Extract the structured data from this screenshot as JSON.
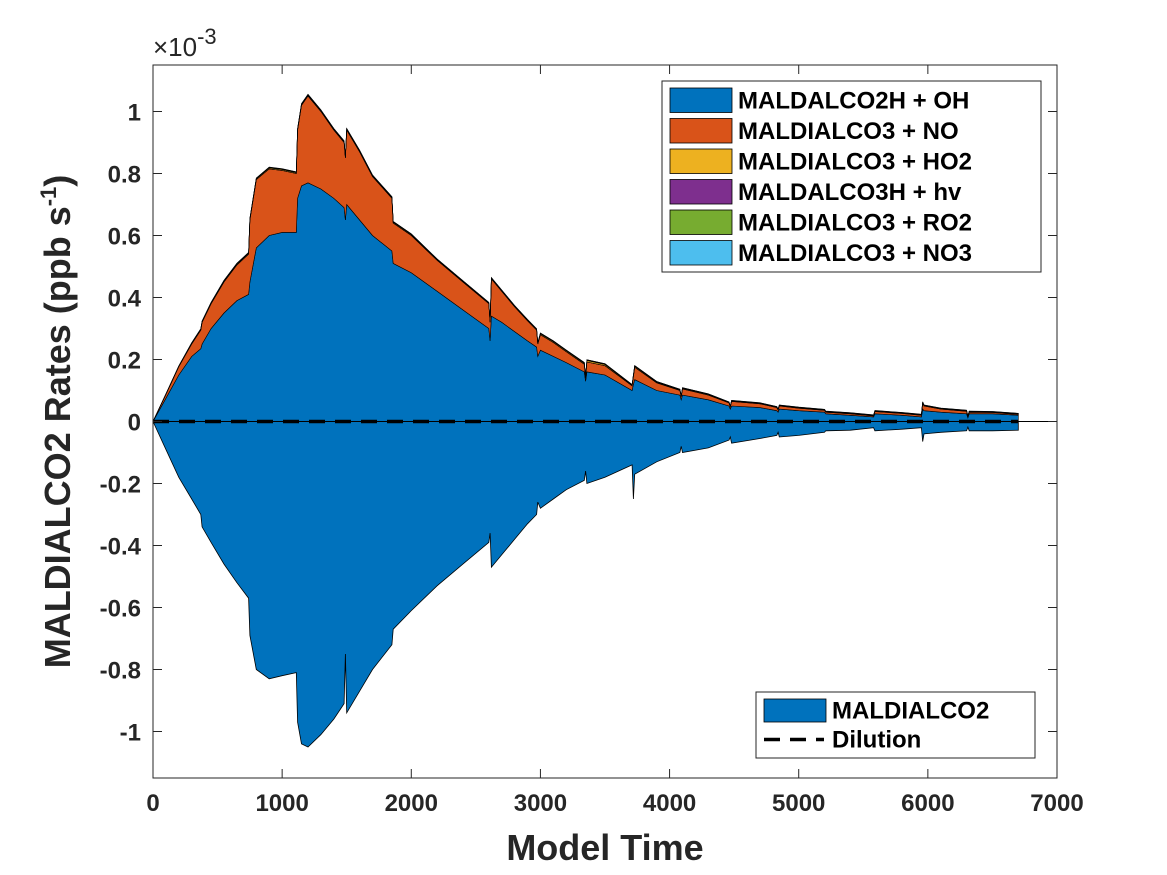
{
  "chart_data": {
    "type": "area",
    "title": "",
    "xlabel": "Model Time",
    "ylabel_main": "MALDIALCO2 Rates (ppb s",
    "ylabel_sup": "-1",
    "ylabel_close": ")",
    "y_multiplier": {
      "base": "×10",
      "exponent": "-3"
    },
    "xlim": [
      0,
      7000
    ],
    "ylim": [
      -1.15,
      1.15
    ],
    "x_ticks": [
      0,
      1000,
      2000,
      3000,
      4000,
      5000,
      6000,
      7000
    ],
    "x_tick_labels": [
      "0",
      "1000",
      "2000",
      "3000",
      "4000",
      "5000",
      "6000",
      "7000"
    ],
    "y_ticks": [
      -1,
      -0.8,
      -0.6,
      -0.4,
      -0.2,
      0,
      0.2,
      0.4,
      0.6,
      0.8,
      1
    ],
    "y_tick_labels": [
      "-1",
      "-0.8",
      "-0.6",
      "-0.4",
      "-0.2",
      "0",
      "0.2",
      "0.4",
      "0.6",
      "0.8",
      "1"
    ],
    "x": [
      0,
      100,
      200,
      300,
      370,
      380,
      450,
      550,
      650,
      740,
      750,
      800,
      900,
      1000,
      1110,
      1120,
      1150,
      1200,
      1300,
      1400,
      1480,
      1490,
      1500,
      1600,
      1700,
      1850,
      1860,
      2000,
      2200,
      2400,
      2600,
      2610,
      2620,
      2700,
      2800,
      2900,
      2970,
      2980,
      3000,
      3100,
      3200,
      3340,
      3350,
      3360,
      3500,
      3710,
      3720,
      3730,
      3900,
      4080,
      4090,
      4100,
      4300,
      4460,
      4470,
      4480,
      4700,
      4830,
      4840,
      4850,
      5000,
      5200,
      5210,
      5400,
      5580,
      5590,
      5800,
      5950,
      5960,
      5970,
      6100,
      6300,
      6310,
      6320,
      6500,
      6700
    ],
    "series": [
      {
        "name": "MALDALCO2H + OH",
        "color": "#0072BD",
        "values": [
          0,
          0.075,
          0.15,
          0.21,
          0.235,
          0.25,
          0.3,
          0.35,
          0.39,
          0.41,
          0.45,
          0.56,
          0.6,
          0.61,
          0.61,
          0.72,
          0.76,
          0.77,
          0.75,
          0.72,
          0.69,
          0.65,
          0.7,
          0.65,
          0.6,
          0.55,
          0.51,
          0.48,
          0.42,
          0.36,
          0.3,
          0.26,
          0.34,
          0.32,
          0.29,
          0.26,
          0.24,
          0.21,
          0.23,
          0.21,
          0.19,
          0.16,
          0.13,
          0.16,
          0.15,
          0.1,
          0.12,
          0.135,
          0.1,
          0.085,
          0.07,
          0.085,
          0.07,
          0.05,
          0.04,
          0.05,
          0.045,
          0.035,
          0.03,
          0.04,
          0.035,
          0.03,
          0.025,
          0.02,
          0.015,
          0.025,
          0.02,
          0.015,
          0.04,
          0.035,
          0.03,
          0.025,
          0.012,
          0.025,
          0.025,
          0.02
        ]
      },
      {
        "name": "MALDIALCO3 + NO",
        "color": "#D95319",
        "values": [
          0,
          0.012,
          0.027,
          0.04,
          0.06,
          0.07,
          0.08,
          0.1,
          0.115,
          0.13,
          0.2,
          0.22,
          0.215,
          0.2,
          0.19,
          0.22,
          0.26,
          0.28,
          0.25,
          0.22,
          0.21,
          0.2,
          0.24,
          0.22,
          0.19,
          0.17,
          0.13,
          0.12,
          0.1,
          0.09,
          0.08,
          0.06,
          0.12,
          0.1,
          0.08,
          0.065,
          0.055,
          0.04,
          0.05,
          0.045,
          0.035,
          0.025,
          0.01,
          0.032,
          0.03,
          0.015,
          0.025,
          0.04,
          0.025,
          0.015,
          0.01,
          0.02,
          0.015,
          0.01,
          0.007,
          0.015,
          0.012,
          0.01,
          0.007,
          0.01,
          0.008,
          0.006,
          0.005,
          0.005,
          0.003,
          0.007,
          0.006,
          0.005,
          0.02,
          0.015,
          0.01,
          0.008,
          0.003,
          0.005,
          0.004,
          0.003
        ]
      },
      {
        "name": "MALDIALCO3 + HO2",
        "color": "#EDB120",
        "values": [
          0,
          0.001,
          0.001,
          0.002,
          0.002,
          0.002,
          0.002,
          0.003,
          0.003,
          0.003,
          0.003,
          0.003,
          0.003,
          0.003,
          0.003,
          0.003,
          0.003,
          0.003,
          0.003,
          0.003,
          0.003,
          0.003,
          0.003,
          0.003,
          0.003,
          0.003,
          0.003,
          0.003,
          0.002,
          0.002,
          0.002,
          0.002,
          0.002,
          0.002,
          0.002,
          0.002,
          0.002,
          0.002,
          0.003,
          0.003,
          0.003,
          0.003,
          0.002,
          0.005,
          0.004,
          0.002,
          0.003,
          0.003,
          0.002,
          0.002,
          0.001,
          0.002,
          0.002,
          0.001,
          0.001,
          0.001,
          0.001,
          0.001,
          0.001,
          0.001,
          0.001,
          0.001,
          0.001,
          0.001,
          0.001,
          0.001,
          0.001,
          0.001,
          0.001,
          0.001,
          0.001,
          0.001,
          0.001,
          0.001,
          0.001,
          0.001
        ]
      },
      {
        "name": "MALDALCO3H + hv",
        "color": "#7E2F8E",
        "values": [
          0,
          0.0005,
          0.0005,
          0.001,
          0.001,
          0.001,
          0.001,
          0.001,
          0.001,
          0.001,
          0.001,
          0.001,
          0.001,
          0.001,
          0.001,
          0.001,
          0.001,
          0.001,
          0.001,
          0.001,
          0.001,
          0.001,
          0.001,
          0.001,
          0.001,
          0.001,
          0.001,
          0.001,
          0.001,
          0.001,
          0.001,
          0.001,
          0.001,
          0.001,
          0.001,
          0.001,
          0.001,
          0.001,
          0.001,
          0.001,
          0.001,
          0.001,
          0.001,
          0.001,
          0.001,
          0.001,
          0.001,
          0.001,
          0.001,
          0.001,
          0.001,
          0.001,
          0.001,
          0.001,
          0.001,
          0.001,
          0.001,
          0.001,
          0.001,
          0.001,
          0.001,
          0.001,
          0.001,
          0.001,
          0.001,
          0.001,
          0.001,
          0.001,
          0.001,
          0.001,
          0.001,
          0.001,
          0.001,
          0.001,
          0.001,
          0.001
        ]
      },
      {
        "name": "MALDIALCO3 + RO2",
        "color": "#77AC30",
        "values": [
          0,
          0.0003,
          0.0005,
          0.0007,
          0.0008,
          0.0008,
          0.0009,
          0.001,
          0.001,
          0.001,
          0.001,
          0.001,
          0.001,
          0.001,
          0.001,
          0.001,
          0.001,
          0.001,
          0.001,
          0.001,
          0.001,
          0.001,
          0.001,
          0.001,
          0.001,
          0.001,
          0.001,
          0.001,
          0.001,
          0.001,
          0.001,
          0.001,
          0.001,
          0.001,
          0.001,
          0.001,
          0.001,
          0.001,
          0.001,
          0.001,
          0.001,
          0.001,
          0.001,
          0.001,
          0.001,
          0.001,
          0.001,
          0.001,
          0.001,
          0.001,
          0.001,
          0.001,
          0.001,
          0.001,
          0.001,
          0.001,
          0.001,
          0.001,
          0.001,
          0.001,
          0.001,
          0.001,
          0.001,
          0.001,
          0.001,
          0.001,
          0.001,
          0.001,
          0.001,
          0.001,
          0.001,
          0.001,
          0.001,
          0.001,
          0.001,
          0.001
        ]
      },
      {
        "name": "MALDIALCO3 + NO3",
        "color": "#4DBEEE",
        "values": [
          0,
          0.0002,
          0.0003,
          0.0004,
          0.0005,
          0.0005,
          0.0005,
          0.0005,
          0.0005,
          0.0005,
          0.0005,
          0.0005,
          0.0005,
          0.0005,
          0.0005,
          0.0005,
          0.0005,
          0.0005,
          0.0005,
          0.0005,
          0.0005,
          0.0005,
          0.0005,
          0.0005,
          0.0005,
          0.0005,
          0.0005,
          0.0005,
          0.0005,
          0.0005,
          0.0005,
          0.0005,
          0.0005,
          0.0005,
          0.0005,
          0.0005,
          0.0005,
          0.0005,
          0.0005,
          0.0005,
          0.0005,
          0.0005,
          0.0005,
          0.0005,
          0.0005,
          0.0005,
          0.0005,
          0.0005,
          0.0005,
          0.0005,
          0.0005,
          0.0005,
          0.0005,
          0.0005,
          0.0005,
          0.0005,
          0.0005,
          0.0005,
          0.0005,
          0.0005,
          0.0005,
          0.0005,
          0.0005,
          0.0005,
          0.0005,
          0.0005,
          0.0005,
          0.0005,
          0.0005,
          0.0005,
          0.0005,
          0.0005,
          0.0005,
          0.0005,
          0.0005,
          0.0005
        ]
      },
      {
        "name": "MALDIALCO2",
        "color": "#0072BD",
        "values": [
          0,
          -0.09,
          -0.18,
          -0.25,
          -0.3,
          -0.34,
          -0.39,
          -0.46,
          -0.52,
          -0.57,
          -0.69,
          -0.8,
          -0.83,
          -0.82,
          -0.81,
          -0.97,
          -1.04,
          -1.05,
          -1.01,
          -0.96,
          -0.91,
          -0.75,
          -0.94,
          -0.87,
          -0.8,
          -0.72,
          -0.67,
          -0.61,
          -0.53,
          -0.46,
          -0.39,
          -0.36,
          -0.47,
          -0.43,
          -0.38,
          -0.33,
          -0.3,
          -0.26,
          -0.28,
          -0.25,
          -0.22,
          -0.19,
          -0.16,
          -0.2,
          -0.18,
          -0.14,
          -0.25,
          -0.17,
          -0.13,
          -0.1,
          -0.08,
          -0.1,
          -0.085,
          -0.06,
          -0.05,
          -0.07,
          -0.055,
          -0.045,
          -0.035,
          -0.05,
          -0.045,
          -0.035,
          -0.03,
          -0.028,
          -0.02,
          -0.03,
          -0.025,
          -0.02,
          -0.065,
          -0.04,
          -0.035,
          -0.03,
          -0.018,
          -0.03,
          -0.03,
          -0.028
        ]
      },
      {
        "name": "Dilution",
        "color": "#000000",
        "values": [
          0,
          0,
          0,
          0,
          0,
          0,
          0,
          0,
          0,
          0,
          0,
          0,
          0,
          0,
          0,
          0,
          0,
          0,
          0,
          0,
          0,
          0,
          0,
          0,
          0,
          0,
          0,
          0,
          0,
          0,
          0,
          0,
          0,
          0,
          0,
          0,
          0,
          0,
          0,
          0,
          0,
          0,
          0,
          0,
          0,
          0,
          0,
          0,
          0,
          0,
          0,
          0,
          0,
          0,
          0,
          0,
          0,
          0,
          0,
          0,
          0,
          0,
          0,
          0,
          0,
          0,
          0,
          0,
          0,
          0,
          0,
          0,
          0,
          0,
          0,
          0
        ]
      }
    ],
    "legend_production": [
      "MALDALCO2H + OH",
      "MALDIALCO3 + NO",
      "MALDIALCO3 + HO2",
      "MALDALCO3H + hv",
      "MALDIALCO3 + RO2",
      "MALDIALCO3 + NO3"
    ],
    "legend_production_placement": "top-right",
    "legend_loss": [
      "MALDIALCO2",
      "Dilution"
    ],
    "legend_loss_placement": "bottom-right",
    "grid": false
  }
}
